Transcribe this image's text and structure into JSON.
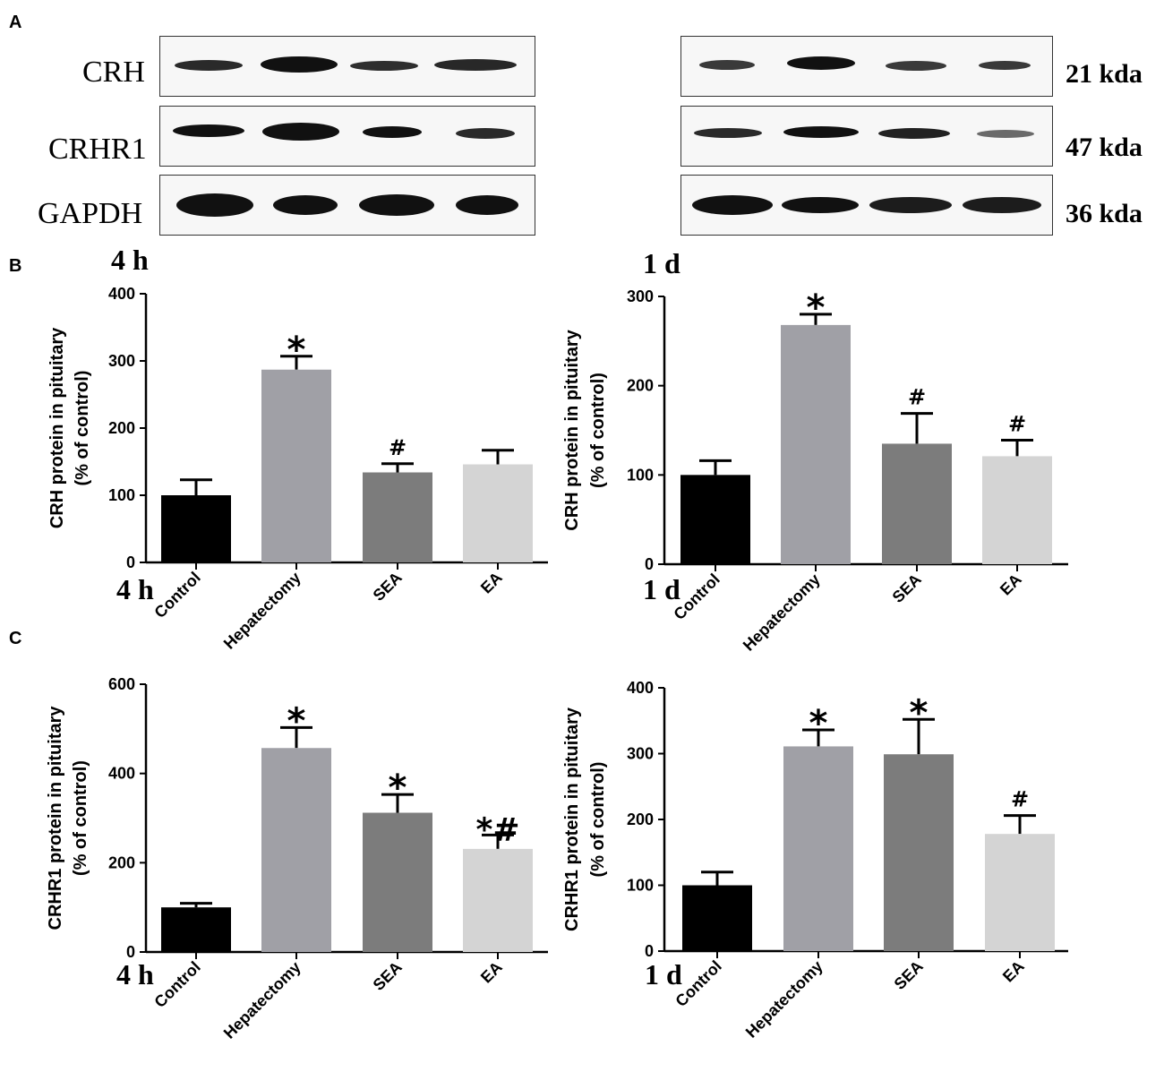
{
  "panels": {
    "a": "A",
    "b": "B",
    "c": "C"
  },
  "blot": {
    "labels": [
      "CRH",
      "CRHR1",
      "GAPDH"
    ],
    "kda": [
      "21 kda",
      "47 kda",
      "36 kda"
    ]
  },
  "time": {
    "left": "4 h",
    "right": "1 d"
  },
  "colors": {
    "Control": "#000000",
    "Hepatectomy": "#a0a0a6",
    "SEA": "#7c7c7c",
    "EA": "#d4d4d4"
  },
  "chart_data": [
    {
      "type": "bar",
      "panel": "B",
      "time": "4 h",
      "categories": [
        "Control",
        "Hepatectomy",
        "SEA",
        "EA"
      ],
      "values": [
        100,
        287,
        134,
        146
      ],
      "errors": [
        23,
        20,
        13,
        21
      ],
      "annotations": [
        "",
        "*",
        "#",
        ""
      ],
      "ylabel": "CRH protein in pituitary",
      "ylabel2": "(% of control)",
      "ylim": [
        0,
        400
      ],
      "yticks": [
        0,
        100,
        200,
        300,
        400
      ]
    },
    {
      "type": "bar",
      "panel": "B",
      "time": "1 d",
      "categories": [
        "Control",
        "Hepatectomy",
        "SEA",
        "EA"
      ],
      "values": [
        100,
        268,
        135,
        121
      ],
      "errors": [
        16,
        12,
        34,
        18
      ],
      "annotations": [
        "",
        "*",
        "#",
        "#"
      ],
      "ylabel": "CRH protein in pituitary",
      "ylabel2": "(% of control)",
      "ylim": [
        0,
        300
      ],
      "yticks": [
        0,
        100,
        200,
        300
      ]
    },
    {
      "type": "bar",
      "panel": "C",
      "time": "4 h",
      "categories": [
        "Control",
        "Hepatectomy",
        "SEA",
        "EA"
      ],
      "values": [
        100,
        457,
        312,
        231
      ],
      "errors": [
        9,
        46,
        41,
        31
      ],
      "annotations": [
        "",
        "*",
        "*",
        "*#"
      ],
      "ylabel": "CRHR1 protein in pituitary",
      "ylabel2": "(% of control)",
      "ylim": [
        0,
        600
      ],
      "yticks": [
        0,
        200,
        400,
        600
      ]
    },
    {
      "type": "bar",
      "panel": "C",
      "time": "1 d",
      "categories": [
        "Control",
        "Hepatectomy",
        "SEA",
        "EA"
      ],
      "values": [
        100,
        311,
        299,
        178
      ],
      "errors": [
        20,
        25,
        53,
        28
      ],
      "annotations": [
        "",
        "*",
        "*",
        "#"
      ],
      "ylabel": "CRHR1 protein in pituitary",
      "ylabel2": "(% of control)",
      "ylim": [
        0,
        400
      ],
      "yticks": [
        0,
        100,
        200,
        300,
        400
      ]
    }
  ]
}
